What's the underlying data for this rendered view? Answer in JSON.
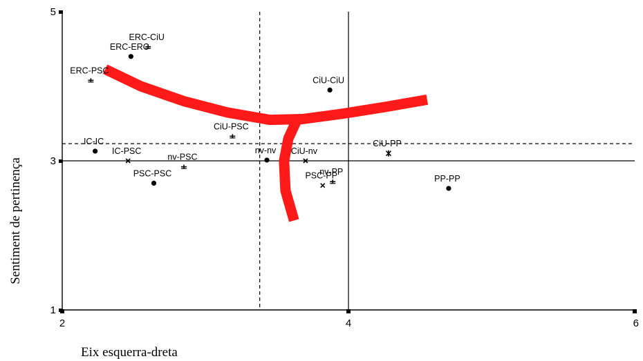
{
  "chart_data": {
    "type": "scatter",
    "title": "",
    "xlabel": "Eix esquerra-dreta",
    "ylabel": "Sentiment de pertinença",
    "xlim": [
      2,
      6
    ],
    "ylim": [
      1,
      5
    ],
    "x_ticks": [
      "2",
      "4",
      "6"
    ],
    "y_ticks": [
      "1",
      "3",
      "5"
    ],
    "grid": false,
    "reference_lines": {
      "solid": {
        "x": 4,
        "y": 3
      },
      "dashed": {
        "x": 3.38,
        "y": 3.23
      }
    },
    "points": [
      {
        "label": "ERC-CiU",
        "x": 2.6,
        "y": 4.53,
        "marker": "plus"
      },
      {
        "label": "ERC-ERC",
        "x": 2.48,
        "y": 4.4,
        "marker": "dot"
      },
      {
        "label": "ERC-PSC",
        "x": 2.2,
        "y": 4.08,
        "marker": "plus"
      },
      {
        "label": "CiU-CiU",
        "x": 3.87,
        "y": 3.95,
        "marker": "dot"
      },
      {
        "label": "CiU-PSC",
        "x": 3.19,
        "y": 3.33,
        "marker": "plus"
      },
      {
        "label": "IC-IC",
        "x": 2.23,
        "y": 3.13,
        "marker": "dot"
      },
      {
        "label": "IC-PSC",
        "x": 2.46,
        "y": 3.0,
        "marker": "cross"
      },
      {
        "label": "nv-PSC",
        "x": 2.85,
        "y": 2.92,
        "marker": "plus"
      },
      {
        "label": "nv-nv",
        "x": 3.43,
        "y": 3.01,
        "marker": "dot"
      },
      {
        "label": "CiU-nv",
        "x": 3.7,
        "y": 3.0,
        "marker": "cross"
      },
      {
        "label": "CiU-PP",
        "x": 4.28,
        "y": 3.1,
        "marker": "star"
      },
      {
        "label": "PSC-PSC",
        "x": 2.64,
        "y": 2.7,
        "marker": "dot"
      },
      {
        "label": "nv-PP",
        "x": 3.89,
        "y": 2.72,
        "marker": "plus"
      },
      {
        "label": "PSC-PP",
        "x": 3.82,
        "y": 2.67,
        "marker": "cross"
      },
      {
        "label": "PP-PP",
        "x": 4.7,
        "y": 2.63,
        "marker": "dot"
      }
    ],
    "annotation_stroke": {
      "color": "#ff1a1a",
      "branch_top": [
        [
          2.3,
          4.23
        ],
        [
          2.55,
          4.0
        ],
        [
          2.85,
          3.8
        ],
        [
          3.15,
          3.65
        ],
        [
          3.45,
          3.55
        ],
        [
          3.68,
          3.56
        ],
        [
          3.95,
          3.63
        ],
        [
          4.25,
          3.72
        ],
        [
          4.55,
          3.82
        ]
      ],
      "branch_down": [
        [
          3.64,
          3.55
        ],
        [
          3.58,
          3.3
        ],
        [
          3.55,
          3.0
        ],
        [
          3.56,
          2.6
        ],
        [
          3.62,
          2.2
        ]
      ]
    }
  }
}
